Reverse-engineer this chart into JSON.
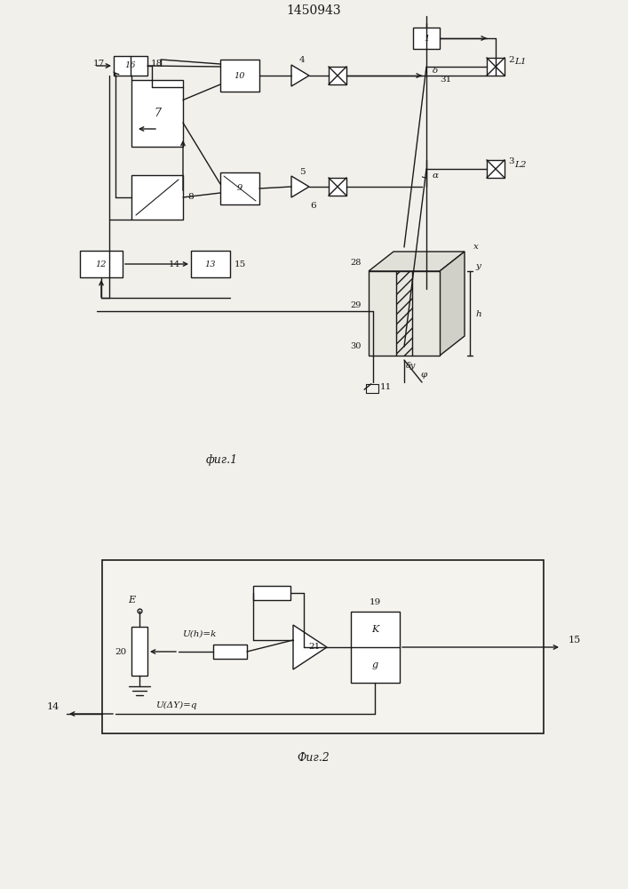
{
  "title": "1450943",
  "fig1_caption": "фиг.1",
  "fig2_caption": "Фиг.2",
  "bg_color": "#f2f0eb",
  "line_color": "#1a1a1a"
}
